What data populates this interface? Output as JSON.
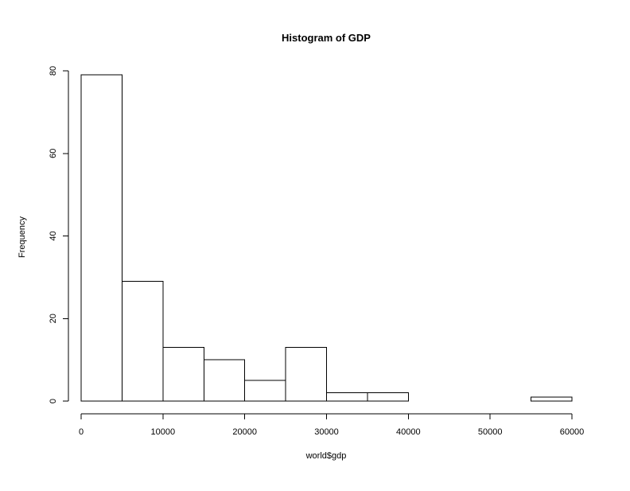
{
  "chart_data": {
    "type": "bar",
    "title": "Histogram of GDP",
    "xlabel": "world$gdp",
    "ylabel": "Frequency",
    "bins": [
      {
        "from": 0,
        "to": 5000,
        "count": 79
      },
      {
        "from": 5000,
        "to": 10000,
        "count": 29
      },
      {
        "from": 10000,
        "to": 15000,
        "count": 13
      },
      {
        "from": 15000,
        "to": 20000,
        "count": 10
      },
      {
        "from": 20000,
        "to": 25000,
        "count": 5
      },
      {
        "from": 25000,
        "to": 30000,
        "count": 13
      },
      {
        "from": 30000,
        "to": 35000,
        "count": 2
      },
      {
        "from": 35000,
        "to": 40000,
        "count": 2
      },
      {
        "from": 40000,
        "to": 45000,
        "count": 0
      },
      {
        "from": 45000,
        "to": 50000,
        "count": 0
      },
      {
        "from": 50000,
        "to": 55000,
        "count": 0
      },
      {
        "from": 55000,
        "to": 60000,
        "count": 1
      }
    ],
    "xlim": [
      0,
      60000
    ],
    "ylim": [
      0,
      80
    ],
    "x_ticks": [
      0,
      10000,
      20000,
      30000,
      40000,
      50000,
      60000
    ],
    "y_ticks": [
      0,
      20,
      40,
      60,
      80
    ],
    "grid": false,
    "bar_fill": "#ffffff",
    "bar_stroke": "#000000"
  }
}
